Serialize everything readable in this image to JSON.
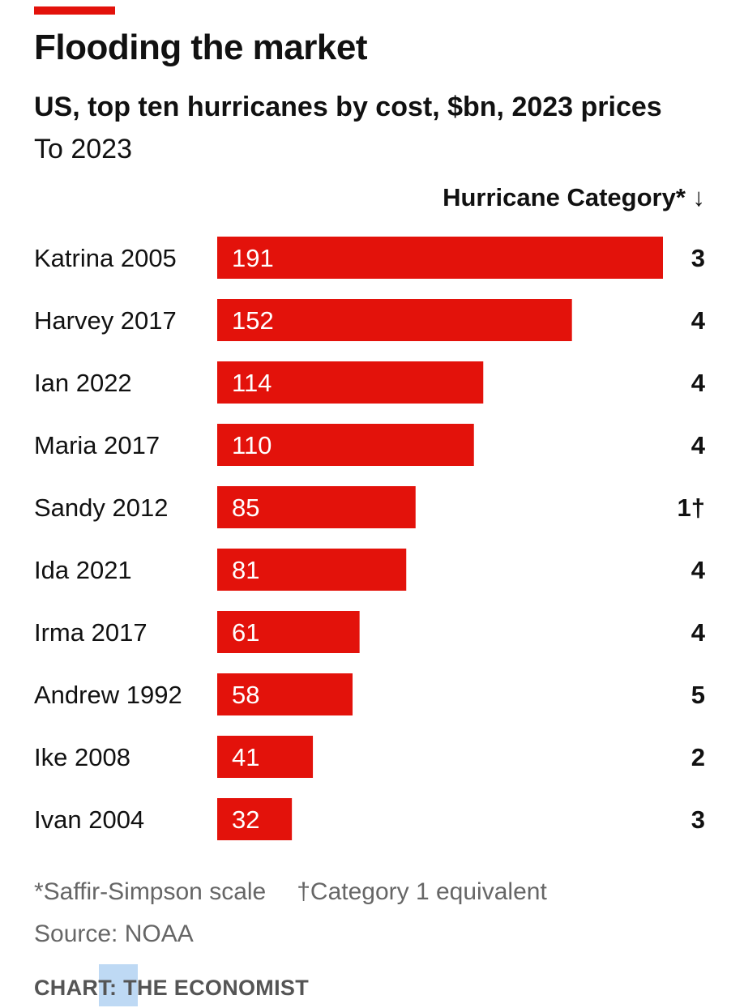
{
  "header": {
    "title": "Flooding the market",
    "subtitle": "US, top ten hurricanes by cost, $bn, 2023 prices",
    "subtitle2": "To 2023",
    "category_header": "Hurricane Category* ↓"
  },
  "footer": {
    "note_star": "*Saffir-Simpson scale",
    "note_dagger": "†Category 1 equivalent",
    "source": "Source: NOAA",
    "credit": "CHART: THE ECONOMIST"
  },
  "colors": {
    "accent": "#e3120b",
    "bar": "#e3120b",
    "bar_label": "#ffffff",
    "text": "#111111",
    "muted": "#666666"
  },
  "chart_data": {
    "type": "bar",
    "orientation": "horizontal",
    "categories": [
      "Katrina 2005",
      "Harvey 2017",
      "Ian 2022",
      "Maria 2017",
      "Sandy 2012",
      "Ida 2021",
      "Irma 2017",
      "Andrew 1992",
      "Ike 2008",
      "Ivan 2004"
    ],
    "values": [
      191,
      152,
      114,
      110,
      85,
      81,
      61,
      58,
      41,
      32
    ],
    "hurricane_category": [
      "3",
      "4",
      "4",
      "4",
      "1†",
      "4",
      "4",
      "5",
      "2",
      "3"
    ],
    "xlim": [
      0,
      191
    ],
    "grid": false,
    "legend": "none"
  }
}
